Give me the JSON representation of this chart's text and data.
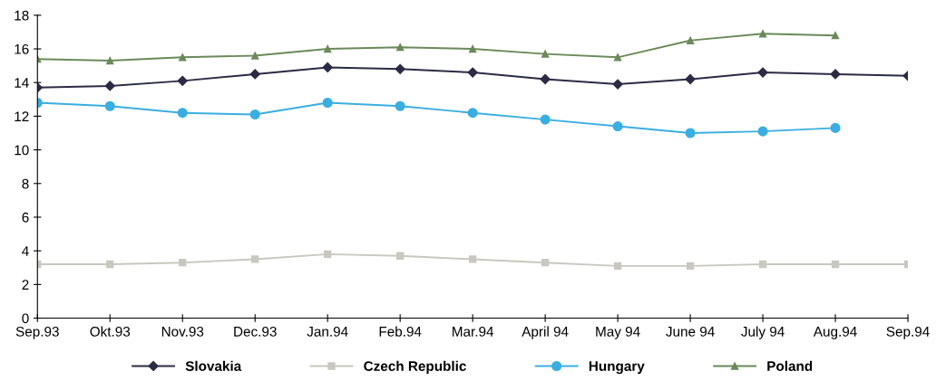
{
  "chart_data": {
    "type": "line",
    "categories": [
      "Sep.93",
      "Okt.93",
      "Nov.93",
      "Dec.93",
      "Jan.94",
      "Feb.94",
      "Mar.94",
      "April 94",
      "May 94",
      "June 94",
      "July 94",
      "Aug.94",
      "Sep.94"
    ],
    "ylim": [
      0,
      18
    ],
    "yticks": [
      0,
      2,
      4,
      6,
      8,
      10,
      12,
      14,
      16,
      18
    ],
    "grid": false,
    "legend": "bottom",
    "series": [
      {
        "name": "Slovakia",
        "color": "#2b2b45",
        "marker": "diamond",
        "values": [
          13.7,
          13.8,
          14.1,
          14.5,
          14.9,
          14.8,
          14.6,
          14.2,
          13.9,
          14.2,
          14.6,
          14.5,
          14.4
        ]
      },
      {
        "name": "Czech Republic",
        "color": "#c8c8c0",
        "marker": "square",
        "values": [
          3.2,
          3.2,
          3.3,
          3.5,
          3.8,
          3.7,
          3.5,
          3.3,
          3.1,
          3.1,
          3.2,
          3.2,
          3.2
        ]
      },
      {
        "name": "Hungary",
        "color": "#3aaee0",
        "marker": "circle",
        "values": [
          12.8,
          12.6,
          12.2,
          12.1,
          12.8,
          12.6,
          12.2,
          11.8,
          11.4,
          11.0,
          11.1,
          11.3,
          null
        ]
      },
      {
        "name": "Poland",
        "color": "#6a8a5a",
        "marker": "triangle",
        "values": [
          15.4,
          15.3,
          15.5,
          15.6,
          16.0,
          16.1,
          16.0,
          15.7,
          15.5,
          16.5,
          16.9,
          16.8,
          null
        ]
      }
    ]
  }
}
